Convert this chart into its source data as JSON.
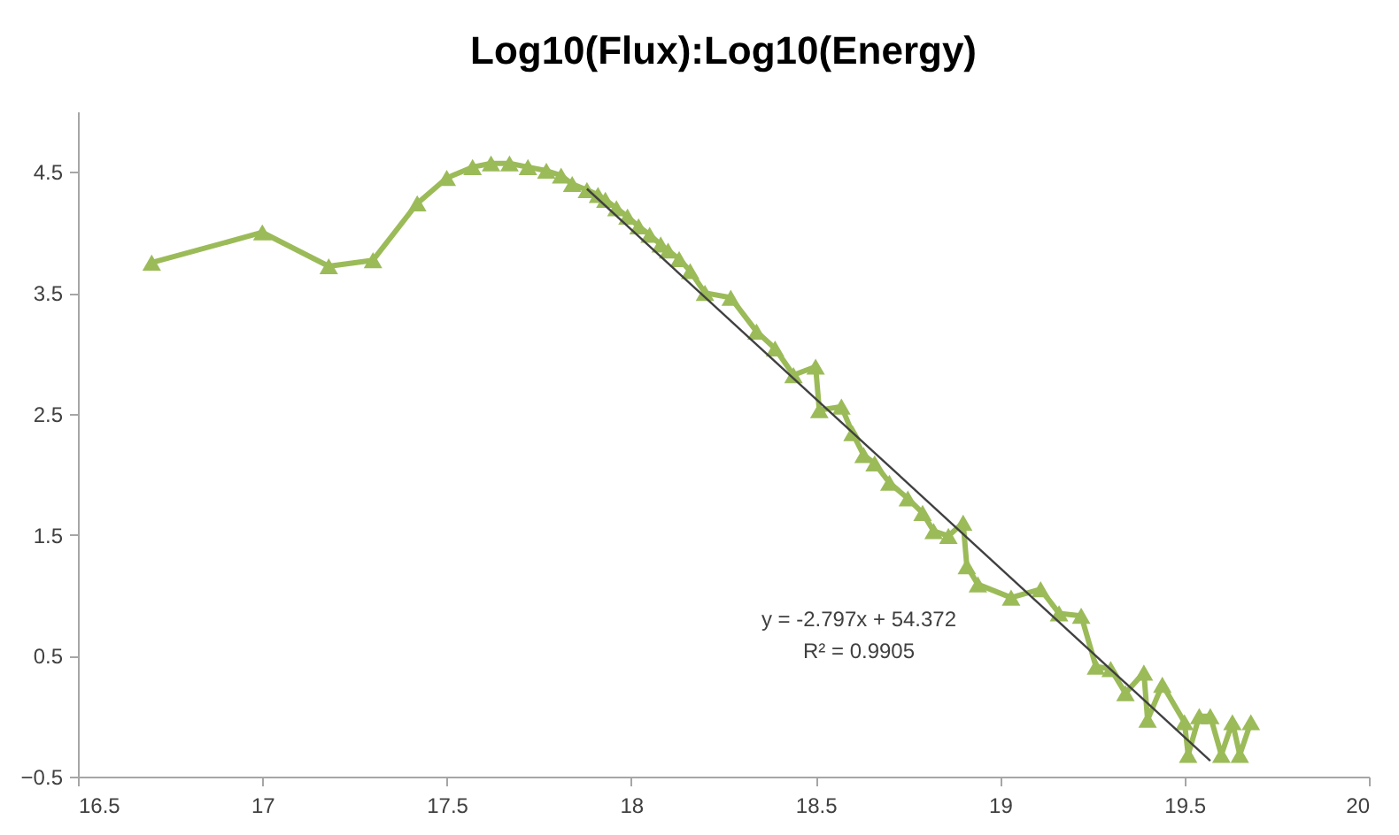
{
  "chart_data": {
    "type": "line",
    "title": "Log10(Flux):Log10(Energy)",
    "xlim": [
      16.5,
      20
    ],
    "xticks": [
      16.5,
      17,
      17.5,
      18,
      18.5,
      19,
      19.5,
      20
    ],
    "ylim": [
      -0.5,
      5
    ],
    "yticks": [
      -0.5,
      0.5,
      1.5,
      2.5,
      3.5,
      4.5
    ],
    "grid": false,
    "marker": "triangle",
    "line_style": "solid",
    "annotations": [
      "y = -2.797x + 54.372",
      "R² = 0.9905"
    ],
    "series": [
      {
        "color": "#9bbb59",
        "x": [
          16.7,
          17.0,
          17.18,
          17.3,
          17.42,
          17.5,
          17.57,
          17.62,
          17.67,
          17.72,
          17.77,
          17.81,
          17.84,
          17.88,
          17.91,
          17.93,
          17.96,
          17.99,
          18.02,
          18.05,
          18.08,
          18.1,
          18.13,
          18.16,
          18.2,
          18.27,
          18.34,
          18.39,
          18.44,
          18.5,
          18.51,
          18.57,
          18.6,
          18.63,
          18.66,
          18.7,
          18.75,
          18.79,
          18.82,
          18.86,
          18.9,
          18.91,
          18.94,
          19.03,
          19.11,
          19.16,
          19.22,
          19.26,
          19.3,
          19.34,
          19.39,
          19.4,
          19.44,
          19.5,
          19.51,
          19.54,
          19.57,
          19.6,
          19.63,
          19.65,
          19.68
        ],
        "values": [
          3.75,
          4.0,
          3.72,
          3.77,
          4.24,
          4.45,
          4.54,
          4.57,
          4.57,
          4.54,
          4.51,
          4.47,
          4.4,
          4.35,
          4.31,
          4.27,
          4.2,
          4.13,
          4.05,
          3.98,
          3.9,
          3.85,
          3.78,
          3.68,
          3.5,
          3.46,
          3.18,
          3.04,
          2.82,
          2.89,
          2.53,
          2.56,
          2.34,
          2.16,
          2.09,
          1.93,
          1.8,
          1.68,
          1.53,
          1.49,
          1.6,
          1.24,
          1.09,
          0.98,
          1.05,
          0.85,
          0.83,
          0.41,
          0.39,
          0.19,
          0.36,
          -0.03,
          0.26,
          -0.05,
          -0.32,
          0.0,
          0.0,
          -0.32,
          -0.05,
          -0.32,
          -0.05
        ]
      },
      {
        "type": "line",
        "color": "#404040",
        "marker": "none",
        "x": [
          17.88,
          19.57
        ],
        "values": [
          4.36,
          -0.37
        ]
      }
    ]
  }
}
